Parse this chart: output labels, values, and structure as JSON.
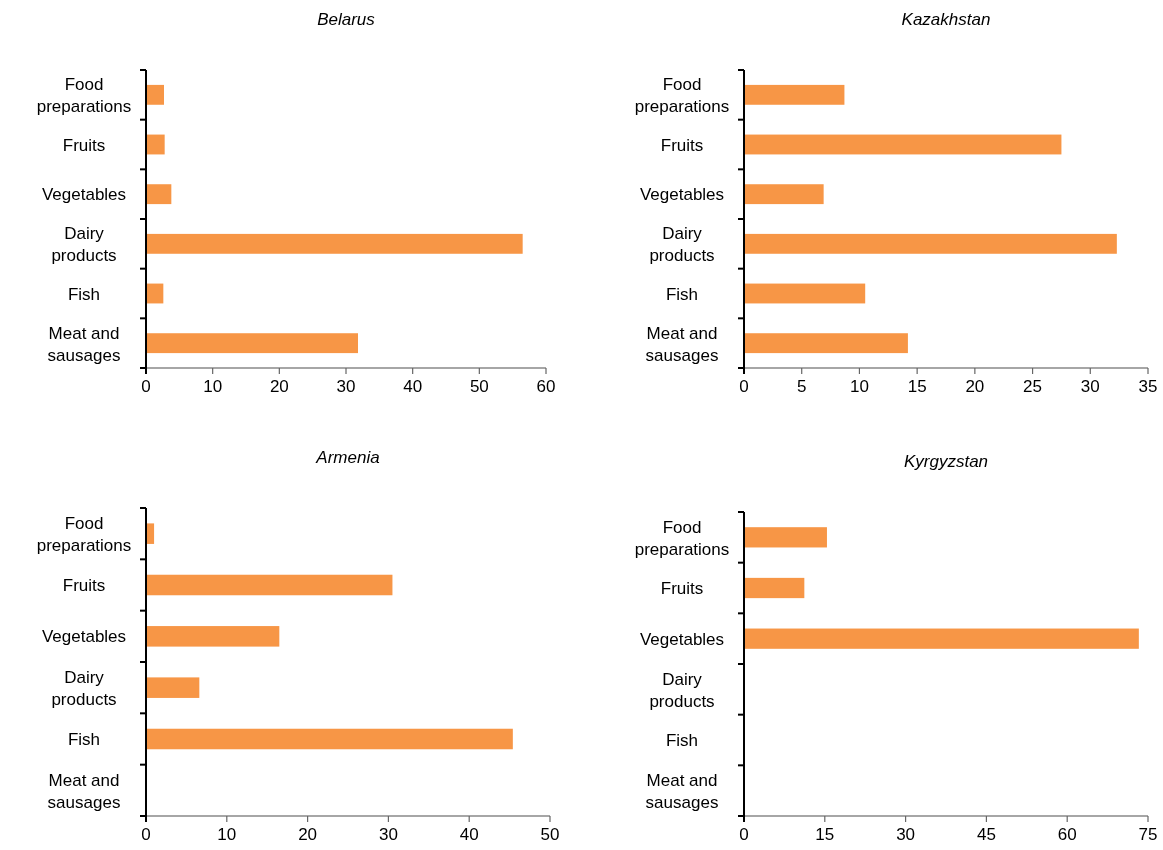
{
  "chart_data": [
    {
      "type": "bar",
      "orientation": "horizontal",
      "title": "Belarus",
      "categories": [
        "Food preparations",
        "Fruits",
        "Vegetables",
        "Dairy products",
        "Fish",
        "Meat and sausages"
      ],
      "values": [
        2.7,
        2.8,
        3.8,
        56.5,
        2.6,
        31.8
      ],
      "color": "#f79646",
      "xlim": [
        0,
        60
      ],
      "xticks": [
        0,
        10,
        20,
        30,
        40,
        50,
        60
      ],
      "grid": false
    },
    {
      "type": "bar",
      "orientation": "horizontal",
      "title": "Kazakhstan",
      "categories": [
        "Food preparations",
        "Fruits",
        "Vegetables",
        "Dairy products",
        "Fish",
        "Meat and sausages"
      ],
      "values": [
        8.7,
        27.5,
        6.9,
        32.3,
        10.5,
        14.2
      ],
      "color": "#f79646",
      "xlim": [
        0,
        35
      ],
      "xticks": [
        0,
        5,
        10,
        15,
        20,
        25,
        30,
        35
      ],
      "grid": false
    },
    {
      "type": "bar",
      "orientation": "horizontal",
      "title": "Armenia",
      "categories": [
        "Food preparations",
        "Fruits",
        "Vegetables",
        "Dairy products",
        "Fish",
        "Meat and sausages"
      ],
      "values": [
        1.0,
        30.5,
        16.5,
        6.6,
        45.4,
        null
      ],
      "color": "#f79646",
      "xlim": [
        0,
        50
      ],
      "xticks": [
        0,
        10,
        20,
        30,
        40,
        50
      ],
      "grid": false
    },
    {
      "type": "bar",
      "orientation": "horizontal",
      "title": "Kyrgyzstan",
      "categories": [
        "Food preparations",
        "Fruits",
        "Vegetables",
        "Dairy products",
        "Fish",
        "Meat and sausages"
      ],
      "values": [
        15.4,
        11.2,
        73.3,
        null,
        null,
        null
      ],
      "color": "#f79646",
      "xlim": [
        0,
        75
      ],
      "xticks": [
        0,
        15,
        30,
        45,
        60,
        75
      ],
      "grid": false
    }
  ]
}
